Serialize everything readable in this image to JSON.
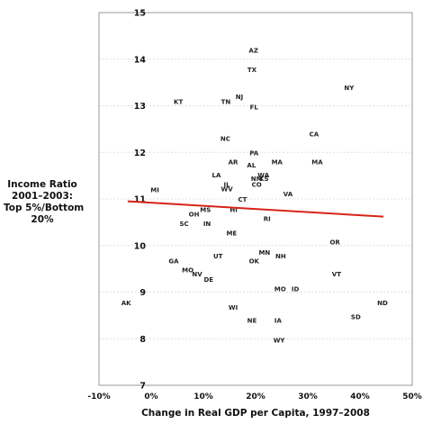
{
  "chart_data": {
    "type": "scatter",
    "title": "",
    "xlabel": "Change in Real GDP per Capita, 1997–2008",
    "ylabel_lines": [
      "Income Ratio",
      "2001–2003:",
      "Top 5%/Bottom",
      "20%"
    ],
    "xlim": [
      -0.1,
      0.5
    ],
    "ylim": [
      7,
      15
    ],
    "x_ticks": [
      -0.1,
      0.0,
      0.1,
      0.2,
      0.3,
      0.4,
      0.5
    ],
    "x_tick_labels": [
      "-10%",
      "0%",
      "10%",
      "20%",
      "30%",
      "40%",
      "50%"
    ],
    "y_ticks": [
      7,
      8,
      9,
      10,
      11,
      12,
      13,
      14,
      15
    ],
    "y_tick_labels": [
      "7",
      "8",
      "9",
      "10",
      "11",
      "12",
      "13",
      "14",
      "15"
    ],
    "grid": true,
    "marker": "state abbreviation text labels",
    "points": [
      {
        "label": "AZ",
        "x": 0.196,
        "y": 14.2
      },
      {
        "label": "TX",
        "x": 0.193,
        "y": 13.78
      },
      {
        "label": "NY",
        "x": 0.379,
        "y": 13.4
      },
      {
        "label": "NJ",
        "x": 0.169,
        "y": 13.2
      },
      {
        "label": "KT",
        "x": 0.052,
        "y": 13.1
      },
      {
        "label": "TN",
        "x": 0.143,
        "y": 13.1
      },
      {
        "label": "FL",
        "x": 0.197,
        "y": 12.98
      },
      {
        "label": "CA",
        "x": 0.312,
        "y": 12.4
      },
      {
        "label": "NC",
        "x": 0.142,
        "y": 12.3
      },
      {
        "label": "PA",
        "x": 0.197,
        "y": 12.0
      },
      {
        "label": "AR",
        "x": 0.157,
        "y": 11.8
      },
      {
        "label": "MA",
        "x": 0.241,
        "y": 11.8
      },
      {
        "label": "MA",
        "x": 0.318,
        "y": 11.8
      },
      {
        "label": "AL",
        "x": 0.192,
        "y": 11.73
      },
      {
        "label": "LA",
        "x": 0.125,
        "y": 11.52
      },
      {
        "label": "WA",
        "x": 0.215,
        "y": 11.52
      },
      {
        "label": "NM",
        "x": 0.202,
        "y": 11.44
      },
      {
        "label": "KS",
        "x": 0.216,
        "y": 11.44
      },
      {
        "label": "IL",
        "x": 0.145,
        "y": 11.32
      },
      {
        "label": "CO",
        "x": 0.202,
        "y": 11.32
      },
      {
        "label": "WV",
        "x": 0.145,
        "y": 11.22
      },
      {
        "label": "MI",
        "x": 0.007,
        "y": 11.2
      },
      {
        "label": "VA",
        "x": 0.262,
        "y": 11.12
      },
      {
        "label": "CT",
        "x": 0.175,
        "y": 11.0
      },
      {
        "label": "MS",
        "x": 0.104,
        "y": 10.78
      },
      {
        "label": "HI",
        "x": 0.158,
        "y": 10.78
      },
      {
        "label": "OH",
        "x": 0.082,
        "y": 10.68
      },
      {
        "label": "RI",
        "x": 0.222,
        "y": 10.58
      },
      {
        "label": "SC",
        "x": 0.063,
        "y": 10.48
      },
      {
        "label": "IN",
        "x": 0.107,
        "y": 10.48
      },
      {
        "label": "ME",
        "x": 0.154,
        "y": 10.28
      },
      {
        "label": "OR",
        "x": 0.352,
        "y": 10.08
      },
      {
        "label": "MN",
        "x": 0.217,
        "y": 9.86
      },
      {
        "label": "UT",
        "x": 0.128,
        "y": 9.78
      },
      {
        "label": "NH",
        "x": 0.248,
        "y": 9.78
      },
      {
        "label": "GA",
        "x": 0.043,
        "y": 9.68
      },
      {
        "label": "OK",
        "x": 0.197,
        "y": 9.68
      },
      {
        "label": "MO",
        "x": 0.07,
        "y": 9.48
      },
      {
        "label": "NV",
        "x": 0.088,
        "y": 9.4
      },
      {
        "label": "VT",
        "x": 0.355,
        "y": 9.4
      },
      {
        "label": "DE",
        "x": 0.11,
        "y": 9.28
      },
      {
        "label": "MO",
        "x": 0.247,
        "y": 9.08
      },
      {
        "label": "ID",
        "x": 0.276,
        "y": 9.08
      },
      {
        "label": "AK",
        "x": -0.048,
        "y": 8.78
      },
      {
        "label": "ND",
        "x": 0.443,
        "y": 8.78
      },
      {
        "label": "WI",
        "x": 0.157,
        "y": 8.68
      },
      {
        "label": "SD",
        "x": 0.392,
        "y": 8.48
      },
      {
        "label": "NE",
        "x": 0.193,
        "y": 8.4
      },
      {
        "label": "IA",
        "x": 0.243,
        "y": 8.4
      },
      {
        "label": "WY",
        "x": 0.245,
        "y": 7.98
      }
    ],
    "trendline": {
      "x": [
        -0.045,
        0.445
      ],
      "y": [
        10.95,
        10.62
      ],
      "color": "#d62418"
    },
    "colors": {
      "points": "#222222",
      "grid": "#e0e0e0",
      "frame": "#9a9a9a",
      "trend": "#d62418"
    }
  }
}
